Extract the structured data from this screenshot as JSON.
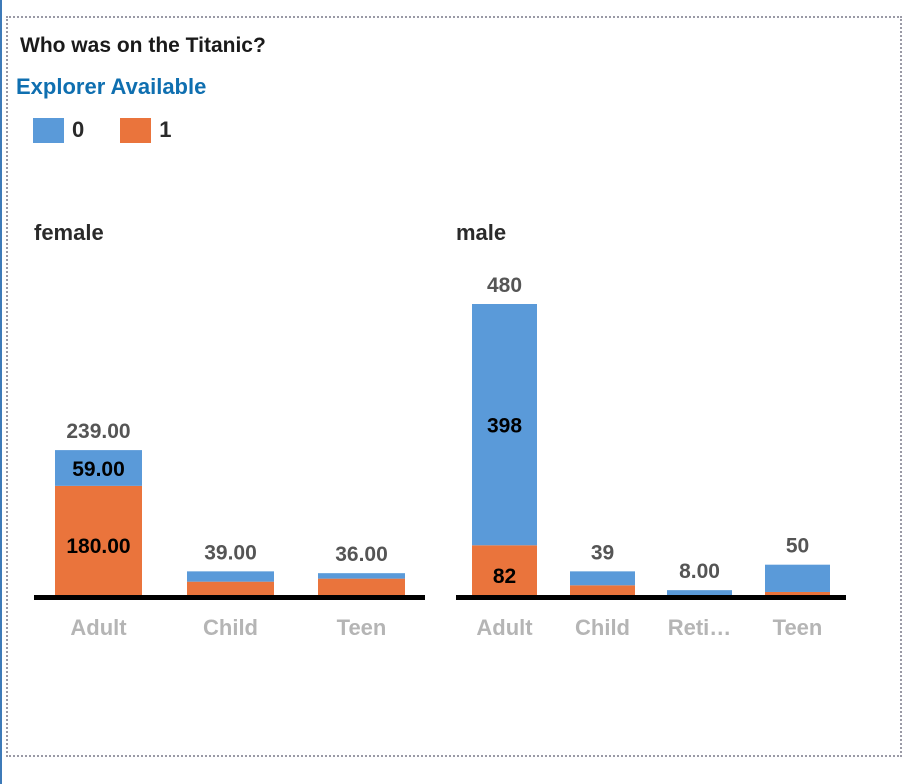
{
  "header": {
    "title": "Who was on the Titanic?",
    "explorer_link": "Explorer Available"
  },
  "legend": [
    {
      "label": "0",
      "color": "#5a9ad9"
    },
    {
      "label": "1",
      "color": "#ea743c"
    }
  ],
  "chart_data": {
    "type": "bar",
    "stacked": true,
    "title": "Who was on the Titanic?",
    "legend_position": "top-left",
    "series_names": [
      "0",
      "1"
    ],
    "series_colors": [
      "#5a9ad9",
      "#ea743c"
    ],
    "panels": [
      {
        "name": "female",
        "categories": [
          "Adult",
          "Child",
          "Teen"
        ],
        "series": [
          {
            "name": "0",
            "values": [
              59,
              17,
              9
            ]
          },
          {
            "name": "1",
            "values": [
              180,
              22,
              27
            ]
          }
        ],
        "totals": [
          239,
          39,
          36
        ],
        "total_labels": [
          "239.00",
          "39.00",
          "36.00"
        ],
        "inner_labels": [
          {
            "category": "Adult",
            "series": "0",
            "text": "59.00"
          },
          {
            "category": "Adult",
            "series": "1",
            "text": "180.00"
          }
        ]
      },
      {
        "name": "male",
        "categories": [
          "Adult",
          "Child",
          "Reti…",
          "Teen"
        ],
        "series": [
          {
            "name": "0",
            "values": [
              398,
              23,
              8,
              45
            ]
          },
          {
            "name": "1",
            "values": [
              82,
              16,
              0,
              5
            ]
          }
        ],
        "totals": [
          480,
          39,
          8,
          50
        ],
        "total_labels": [
          "480",
          "39",
          "8.00",
          "50"
        ],
        "inner_labels": [
          {
            "category": "Adult",
            "series": "0",
            "text": "398"
          },
          {
            "category": "Adult",
            "series": "1",
            "text": "82"
          }
        ]
      }
    ],
    "ylim": [
      0,
      480
    ],
    "grid": false
  }
}
